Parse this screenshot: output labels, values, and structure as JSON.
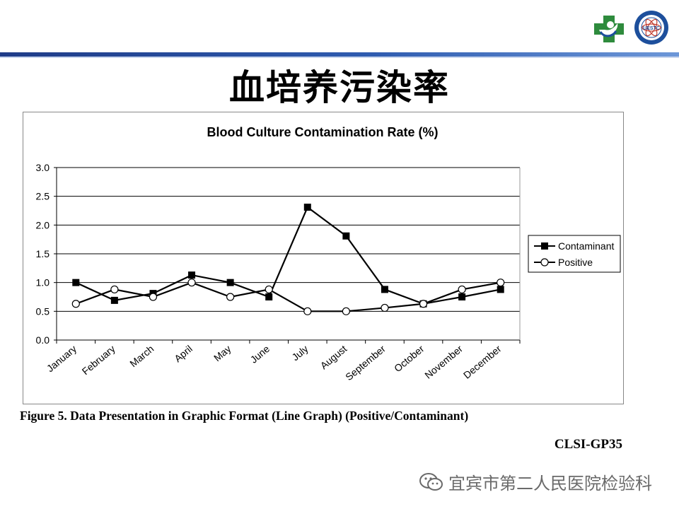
{
  "slide": {
    "title": "血培养污染率",
    "caption": "Figure 5. Data Presentation in Graphic Format (Line Graph) (Positive/Contaminant)",
    "source": "CLSI-GP35",
    "watermark": "宜宾市第二人民医院检验科"
  },
  "logos": {
    "left": "hospital-cross-logo",
    "right": "university-seal-logo",
    "seal_text": "UESTC"
  },
  "colors": {
    "bar": "#1f3c88",
    "accent": "#2f5cb0",
    "logo_green": "#2e8b3d",
    "logo_blue": "#1d4f9c"
  },
  "chart_data": {
    "type": "line",
    "title": "Blood Culture Contamination Rate (%)",
    "categories": [
      "January",
      "February",
      "March",
      "April",
      "May",
      "June",
      "July",
      "August",
      "September",
      "October",
      "November",
      "December"
    ],
    "series": [
      {
        "name": "Contaminant",
        "marker": "filled-square",
        "values": [
          1.0,
          0.69,
          0.81,
          1.13,
          1.0,
          0.75,
          2.31,
          1.81,
          0.88,
          0.63,
          0.75,
          0.88
        ]
      },
      {
        "name": "Positive",
        "marker": "open-circle",
        "values": [
          0.63,
          0.88,
          0.75,
          1.0,
          0.75,
          0.88,
          0.5,
          0.5,
          0.56,
          0.63,
          0.88,
          1.0
        ]
      }
    ],
    "yticks": [
      "0.0",
      "0.5",
      "1.0",
      "1.5",
      "2.0",
      "2.5",
      "3.0"
    ],
    "ylim": [
      0,
      3
    ],
    "grid": true,
    "legend": "right"
  }
}
